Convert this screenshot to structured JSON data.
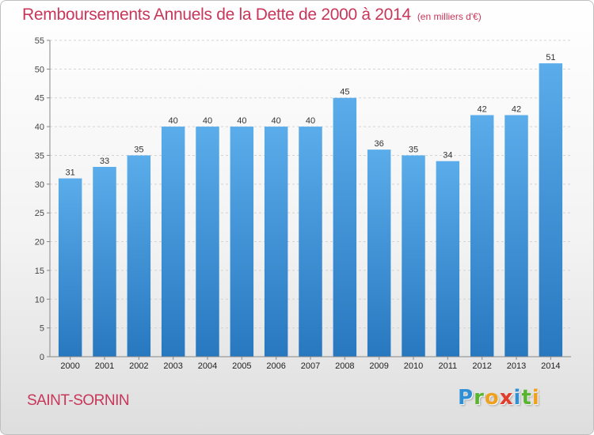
{
  "header": {
    "title": "Remboursements Annuels de la Dette de 2000 à 2014",
    "unit": "(en milliers d'€)"
  },
  "footer": {
    "location": "SAINT-SORNIN",
    "brand": "Proxiti",
    "brand_letters": [
      "P",
      "r",
      "o",
      "x",
      "i",
      "t",
      "i"
    ]
  },
  "colors": {
    "title": "#c8365a",
    "bar_top": "#5aacea",
    "bar_bottom": "#2878c0"
  },
  "chart_data": {
    "type": "bar",
    "title": "Remboursements Annuels de la Dette de 2000 à 2014",
    "xlabel": "",
    "ylabel": "",
    "categories": [
      "2000",
      "2001",
      "2002",
      "2003",
      "2004",
      "2005",
      "2006",
      "2007",
      "2008",
      "2009",
      "2010",
      "2011",
      "2012",
      "2013",
      "2014"
    ],
    "values": [
      31,
      33,
      35,
      40,
      40,
      40,
      40,
      40,
      45,
      36,
      35,
      34,
      42,
      42,
      51
    ],
    "ylim": [
      0,
      55
    ],
    "yticks": [
      0,
      5,
      10,
      15,
      20,
      25,
      30,
      35,
      40,
      45,
      50,
      55
    ],
    "grid": true,
    "legend": "none"
  }
}
